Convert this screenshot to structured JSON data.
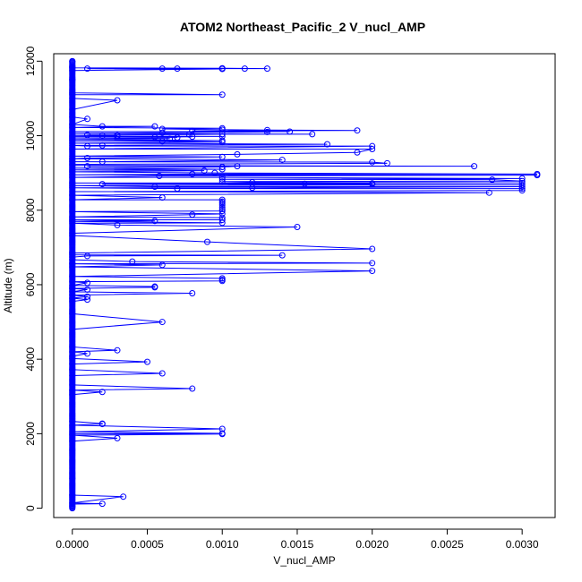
{
  "chart_data": {
    "type": "line",
    "title": "ATOM2 Northeast_Pacific_2 V_nucl_AMP",
    "xlabel": "V_nucl_AMP",
    "ylabel": "Altitude (m)",
    "xlim": [
      -0.000124,
      0.00322
    ],
    "ylim": [
      -250,
      12200
    ],
    "xticks": [
      0.0,
      0.0005,
      0.001,
      0.0015,
      0.002,
      0.0025,
      0.003
    ],
    "xtick_labels": [
      "0.0000",
      "0.0005",
      "0.0010",
      "0.0015",
      "0.0020",
      "0.0025",
      "0.0030"
    ],
    "yticks": [
      0,
      2000,
      4000,
      6000,
      8000,
      10000,
      12000
    ],
    "ytick_labels": [
      "0",
      "2000",
      "4000",
      "6000",
      "8000",
      "10000",
      "12000"
    ],
    "grid": false,
    "legend": "none",
    "colors": {
      "series": "#0000ff",
      "axis": "#000000",
      "background": "#ffffff"
    },
    "series": [
      {
        "marker": "open-circle",
        "points": [
          [
            0.0,
            60
          ],
          [
            0.0,
            110
          ],
          [
            0.0002,
            120
          ],
          [
            0.0,
            140
          ],
          [
            0.00034,
            310
          ],
          [
            0.0,
            350
          ],
          [
            0.0,
            800
          ],
          [
            0.0,
            1800
          ],
          [
            0.0003,
            1880
          ],
          [
            0.0,
            1960
          ],
          [
            0.001,
            1990
          ],
          [
            0.0,
            2000
          ],
          [
            0.001,
            2010
          ],
          [
            0.0,
            2050
          ],
          [
            0.001,
            2130
          ],
          [
            0.0,
            2230
          ],
          [
            0.0002,
            2260
          ],
          [
            0.0002,
            2270
          ],
          [
            0.0,
            2330
          ],
          [
            0.0,
            3050
          ],
          [
            0.0002,
            3120
          ],
          [
            0.0,
            3170
          ],
          [
            0.0008,
            3210
          ],
          [
            0.0,
            3310
          ],
          [
            0.0,
            3560
          ],
          [
            0.0006,
            3620
          ],
          [
            0.0,
            3720
          ],
          [
            0.0,
            3870
          ],
          [
            0.0005,
            3930
          ],
          [
            0.0,
            4020
          ],
          [
            0.0,
            4080
          ],
          [
            0.0001,
            4150
          ],
          [
            0.0,
            4200
          ],
          [
            0.0003,
            4240
          ],
          [
            0.0,
            4330
          ],
          [
            0.0,
            4800
          ],
          [
            0.0006,
            5000
          ],
          [
            0.0,
            5220
          ],
          [
            0.0,
            5550
          ],
          [
            0.0001,
            5600
          ],
          [
            0.0,
            5640
          ],
          [
            0.0001,
            5680
          ],
          [
            0.0,
            5720
          ],
          [
            0.0008,
            5770
          ],
          [
            0.0,
            5810
          ],
          [
            0.0001,
            5870
          ],
          [
            0.0,
            5900
          ],
          [
            0.00055,
            5930
          ],
          [
            0.00055,
            5950
          ],
          [
            0.0,
            5980
          ],
          [
            0.0001,
            6050
          ],
          [
            0.0,
            6080
          ],
          [
            0.001,
            6100
          ],
          [
            0.001,
            6130
          ],
          [
            0.001,
            6170
          ],
          [
            0.0,
            6220
          ],
          [
            0.002,
            6370
          ],
          [
            0.0,
            6480
          ],
          [
            0.0006,
            6530
          ],
          [
            0.0,
            6560
          ],
          [
            0.0004,
            6620
          ],
          [
            0.0,
            6670
          ],
          [
            0.002,
            6580
          ],
          [
            0.0,
            6740
          ],
          [
            0.0001,
            6770
          ],
          [
            0.0,
            6800
          ],
          [
            0.0014,
            6790
          ],
          [
            0.002,
            6960
          ],
          [
            0.0,
            6850
          ],
          [
            0.0009,
            7150
          ],
          [
            0.0,
            7320
          ],
          [
            0.0,
            7380
          ],
          [
            0.0015,
            7550
          ],
          [
            0.0003,
            7600
          ],
          [
            0.0,
            7650
          ],
          [
            0.001,
            7660
          ],
          [
            0.0,
            7700
          ],
          [
            0.00055,
            7710
          ],
          [
            0.0,
            7740
          ],
          [
            0.001,
            7740
          ],
          [
            0.001,
            7800
          ],
          [
            0.0,
            7820
          ],
          [
            0.0008,
            7880
          ],
          [
            0.001,
            7900
          ],
          [
            0.0,
            7960
          ],
          [
            0.001,
            7980
          ],
          [
            0.001,
            8030
          ],
          [
            0.001,
            8080
          ],
          [
            0.001,
            8140
          ],
          [
            0.001,
            8190
          ],
          [
            0.001,
            8230
          ],
          [
            0.001,
            8280
          ],
          [
            0.0,
            8280
          ],
          [
            0.0006,
            8340
          ],
          [
            0.0,
            8400
          ],
          [
            0.00278,
            8470
          ],
          [
            0.0,
            8500
          ],
          [
            0.003,
            8530
          ],
          [
            0.003,
            8580
          ],
          [
            0.0007,
            8580
          ],
          [
            0.0,
            8600
          ],
          [
            0.0012,
            8600
          ],
          [
            0.003,
            8630
          ],
          [
            0.00055,
            8630
          ],
          [
            0.0,
            8660
          ],
          [
            0.003,
            8680
          ],
          [
            0.0002,
            8700
          ],
          [
            0.002,
            8700
          ],
          [
            0.00155,
            8710
          ],
          [
            0.002,
            8720
          ],
          [
            0.0,
            8730
          ],
          [
            0.003,
            8730
          ],
          [
            0.0012,
            8750
          ],
          [
            0.001,
            8770
          ],
          [
            0.003,
            8780
          ],
          [
            0.0028,
            8820
          ],
          [
            0.001,
            8830
          ],
          [
            0.003,
            8850
          ],
          [
            0.001,
            8880
          ],
          [
            0.0,
            8880
          ],
          [
            0.00058,
            8920
          ],
          [
            0.0031,
            8940
          ],
          [
            0.0,
            8950
          ],
          [
            0.0008,
            8970
          ],
          [
            0.0031,
            8970
          ],
          [
            0.00095,
            9000
          ],
          [
            0.0,
            9030
          ],
          [
            0.00088,
            9060
          ],
          [
            0.0,
            9080
          ],
          [
            0.001,
            9100
          ],
          [
            0.0,
            9130
          ],
          [
            0.001,
            9160
          ],
          [
            0.0011,
            9180
          ],
          [
            0.0001,
            9180
          ],
          [
            0.0,
            9200
          ],
          [
            0.00268,
            9180
          ],
          [
            0.0,
            9230
          ],
          [
            0.0021,
            9260
          ],
          [
            0.002,
            9290
          ],
          [
            0.0,
            9300
          ],
          [
            0.0002,
            9300
          ],
          [
            0.0014,
            9350
          ],
          [
            0.0,
            9380
          ],
          [
            0.0001,
            9400
          ],
          [
            0.001,
            9430
          ],
          [
            0.0,
            9450
          ],
          [
            0.0011,
            9500
          ],
          [
            0.0019,
            9550
          ],
          [
            0.002,
            9640
          ],
          [
            0.0,
            9640
          ],
          [
            0.002,
            9720
          ],
          [
            0.0001,
            9720
          ],
          [
            0.0,
            9740
          ],
          [
            0.0002,
            9740
          ],
          [
            0.0017,
            9770
          ],
          [
            0.0,
            9800
          ],
          [
            0.001,
            9830
          ],
          [
            0.0006,
            9850
          ],
          [
            0.0,
            9860
          ],
          [
            0.001,
            9870
          ],
          [
            0.0,
            9900
          ],
          [
            0.00065,
            9920
          ],
          [
            0.0,
            9940
          ],
          [
            0.0007,
            9950
          ],
          [
            0.00055,
            9960
          ],
          [
            0.0008,
            9970
          ],
          [
            0.0,
            9980
          ],
          [
            0.001,
            9980
          ],
          [
            0.0003,
            9990
          ],
          [
            0.0002,
            10000
          ],
          [
            0.0,
            10010
          ],
          [
            0.0003,
            10010
          ],
          [
            0.0001,
            10020
          ],
          [
            0.00078,
            10030
          ],
          [
            0.001,
            10040
          ],
          [
            0.0016,
            10040
          ],
          [
            0.0,
            10060
          ],
          [
            0.0006,
            10080
          ],
          [
            0.0013,
            10100
          ],
          [
            0.0,
            10110
          ],
          [
            0.00145,
            10110
          ],
          [
            0.0008,
            10130
          ],
          [
            0.0019,
            10140
          ],
          [
            0.0013,
            10150
          ],
          [
            0.001,
            10160
          ],
          [
            0.0006,
            10180
          ],
          [
            0.001,
            10200
          ],
          [
            0.0,
            10220
          ],
          [
            0.00055,
            10250
          ],
          [
            0.0002,
            10250
          ],
          [
            0.0,
            10300
          ],
          [
            0.0001,
            10450
          ],
          [
            0.0,
            10500
          ],
          [
            0.0,
            10700
          ],
          [
            0.0003,
            10950
          ],
          [
            0.0,
            11000
          ],
          [
            0.0,
            11100
          ],
          [
            0.001,
            11100
          ],
          [
            0.0,
            11150
          ],
          [
            0.0,
            11500
          ],
          [
            0.0,
            11750
          ],
          [
            0.0001,
            11800
          ],
          [
            0.0006,
            11800
          ],
          [
            0.0007,
            11800
          ],
          [
            0.001,
            11800
          ],
          [
            0.001,
            11810
          ],
          [
            0.00115,
            11800
          ],
          [
            0.0013,
            11800
          ],
          [
            0.001,
            11790
          ],
          [
            0.0,
            11820
          ],
          [
            0.0,
            11850
          ],
          [
            0.0,
            12000
          ]
        ],
        "dense_zero_axis_points": [
          0,
          12000
        ]
      }
    ]
  }
}
